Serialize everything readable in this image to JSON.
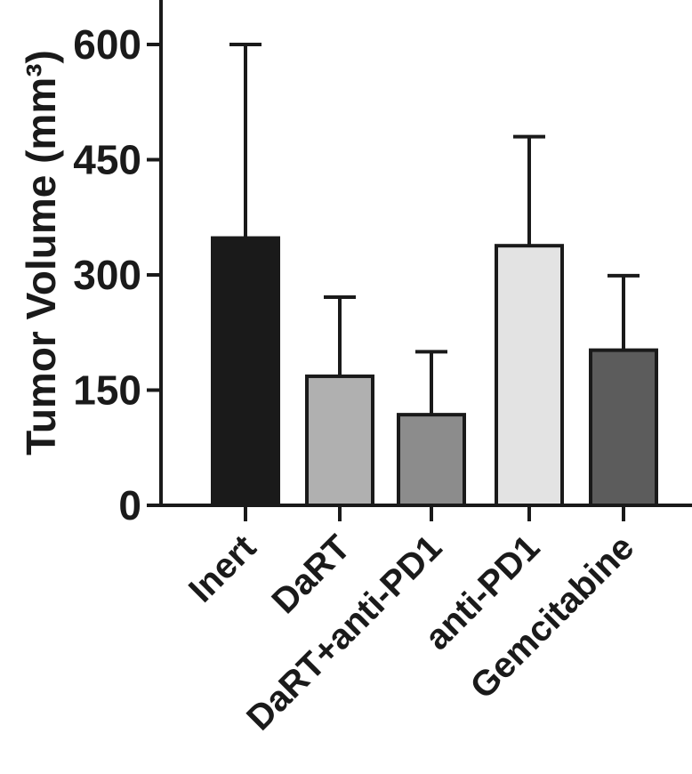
{
  "chart_data": {
    "type": "bar",
    "title": "",
    "xlabel": "",
    "ylabel": "Tumor Volume (mm³)",
    "ylim": [
      0,
      600
    ],
    "yticks": [
      "0",
      "150",
      "300",
      "450",
      "600"
    ],
    "categories": [
      "Inert",
      "DaRT",
      "DaRT+anti-PD1",
      "anti-PD1",
      "Gemcitabine"
    ],
    "values": [
      348,
      168,
      118,
      338,
      202
    ],
    "error_upper": [
      600,
      271,
      200,
      480,
      299
    ],
    "colors": [
      "#1a1a1a",
      "#b0b0b0",
      "#8c8c8c",
      "#e3e3e3",
      "#5c5c5c"
    ],
    "grid": false,
    "legend": "none"
  }
}
